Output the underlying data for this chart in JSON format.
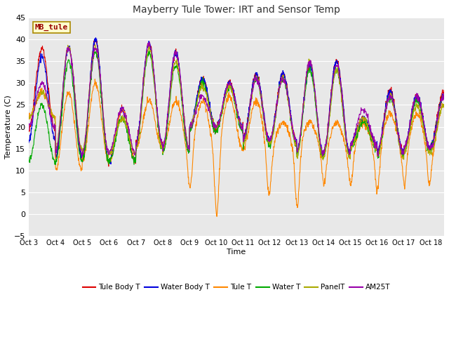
{
  "title": "Mayberry Tule Tower: IRT and Sensor Temp",
  "xlabel": "Time",
  "ylabel": "Temperature (C)",
  "ylim": [
    -5,
    45
  ],
  "yticks": [
    -5,
    0,
    5,
    10,
    15,
    20,
    25,
    30,
    35,
    40,
    45
  ],
  "x_labels": [
    "Oct 3",
    "Oct 4",
    "Oct 5",
    "Oct 6",
    "Oct 7",
    "Oct 8",
    "Oct 9",
    "Oct 10",
    "Oct 11",
    "Oct 12",
    "Oct 13",
    "Oct 14",
    "Oct 15",
    "Oct 16",
    "Oct 17",
    "Oct 18"
  ],
  "station_label": "MB_tule",
  "legend_entries": [
    "Tule Body T",
    "Water Body T",
    "Tule T",
    "Water T",
    "PanelT",
    "AM25T"
  ],
  "line_colors": [
    "#dd0000",
    "#0000dd",
    "#ff8800",
    "#00aa00",
    "#aaaa00",
    "#9900aa"
  ],
  "plot_bg_color": "#e8e8e8",
  "fig_bg_color": "#ffffff",
  "grid_color": "#ffffff",
  "figsize": [
    6.4,
    4.8
  ],
  "dpi": 100
}
